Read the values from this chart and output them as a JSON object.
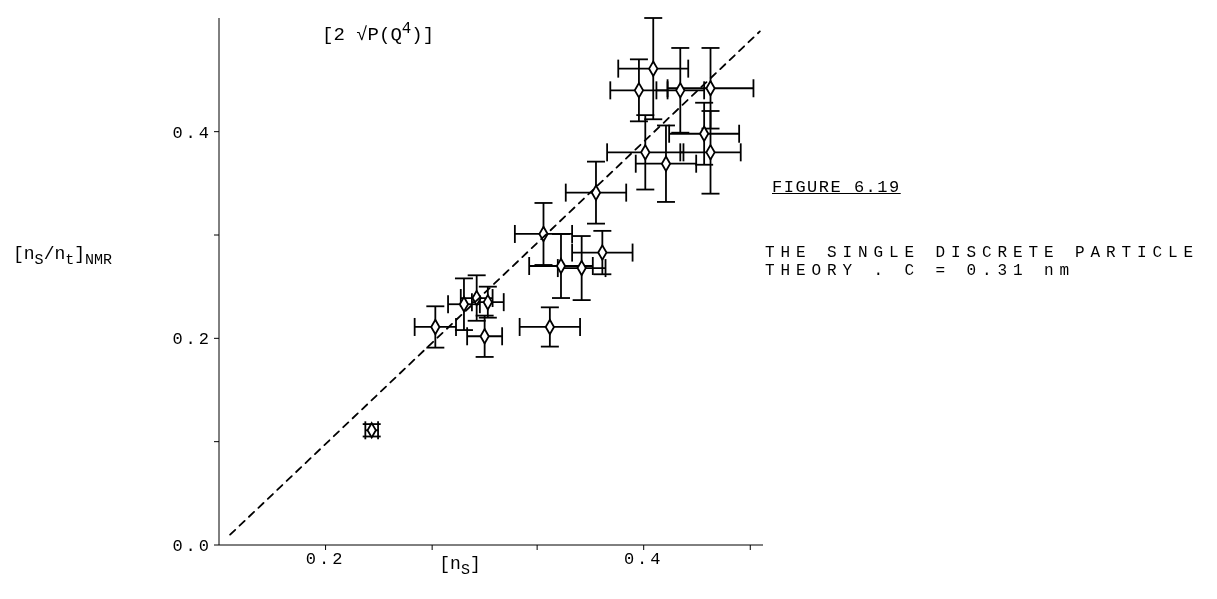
{
  "chart_data": {
    "type": "scatter",
    "title": "FIGURE 6.19",
    "subtitle": "THE SINGLE DISCRETE PARTICLE THEORY . C = 0.31 nm",
    "xlabel": "[n$_{S}$]",
    "ylabel": "[n$_{S}$/n$_{t}$]$_{NMR}$",
    "annotations": [
      "[2 √P(Q$^{4}$)]"
    ],
    "xlim": [
      0.133,
      0.475
    ],
    "xticks": [
      {
        "value": 0.2,
        "label": "0.2"
      },
      {
        "value": 0.267,
        "label": null
      },
      {
        "value": 0.333,
        "label": null
      },
      {
        "value": 0.4,
        "label": "0.4"
      },
      {
        "value": 0.467,
        "label": null
      }
    ],
    "ylim": [
      0,
      0.51
    ],
    "yticks": [
      {
        "value": 0,
        "label": "0.0"
      },
      {
        "value": 0.1,
        "label": null
      },
      {
        "value": 0.2,
        "label": "0.2"
      },
      {
        "value": 0.3,
        "label": null
      },
      {
        "value": 0.4,
        "label": "0.4"
      }
    ],
    "marker": "diamond",
    "series": [
      {
        "color": "#000000",
        "x": [
          0.229,
          0.269,
          0.287,
          0.295,
          0.3,
          0.302,
          0.341,
          0.337,
          0.348,
          0.361,
          0.374,
          0.37,
          0.401,
          0.414,
          0.442,
          0.438,
          0.442,
          0.423,
          0.397,
          0.406
        ],
        "values": [
          0.111,
          0.211,
          0.233,
          0.239,
          0.202,
          0.235,
          0.211,
          0.301,
          0.27,
          0.268,
          0.283,
          0.341,
          0.38,
          0.369,
          0.38,
          0.398,
          0.442,
          0.44,
          0.44,
          0.461
        ],
        "errors": [
          0.006,
          0.02,
          0.025,
          0.022,
          0.02,
          0.015,
          0.019,
          0.03,
          0.031,
          0.031,
          0.021,
          0.03,
          0.036,
          0.037,
          0.04,
          0.03,
          0.039,
          0.041,
          0.03,
          0.049
        ],
        "xerrors": [
          0.004,
          0.013,
          0.01,
          0.01,
          0.011,
          0.01,
          0.019,
          0.018,
          0.02,
          0.015,
          0.019,
          0.019,
          0.024,
          0.019,
          0.019,
          0.022,
          0.027,
          0.015,
          0.018,
          0.022
        ]
      },
      {
        "type": "line",
        "color": "#000000",
        "line_style": "dashed",
        "marker": "none",
        "x": [
          0.14,
          0.473
        ],
        "values": [
          0.01,
          0.497
        ]
      }
    ]
  }
}
